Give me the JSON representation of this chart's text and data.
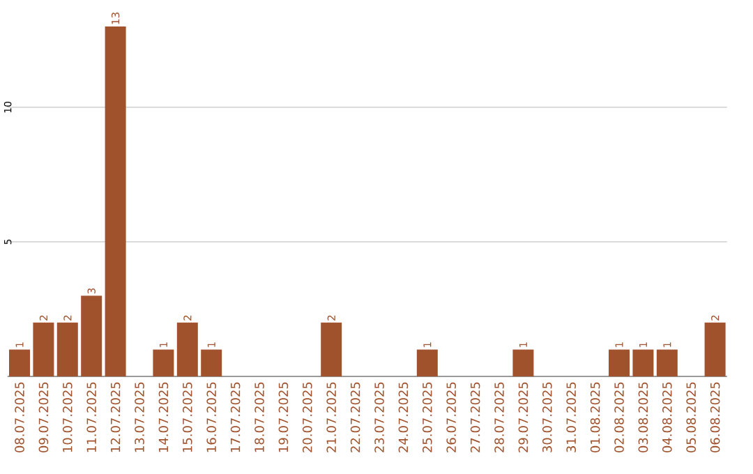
{
  "chart_data": {
    "type": "bar",
    "categories": [
      "08.07.2025",
      "09.07.2025",
      "10.07.2025",
      "11.07.2025",
      "12.07.2025",
      "13.07.2025",
      "14.07.2025",
      "15.07.2025",
      "16.07.2025",
      "17.07.2025",
      "18.07.2025",
      "19.07.2025",
      "20.07.2025",
      "21.07.2025",
      "22.07.2025",
      "23.07.2025",
      "24.07.2025",
      "25.07.2025",
      "26.07.2025",
      "27.07.2025",
      "28.07.2025",
      "29.07.2025",
      "30.07.2025",
      "31.07.2025",
      "01.08.2025",
      "02.08.2025",
      "03.08.2025",
      "04.08.2025",
      "05.08.2025",
      "06.08.2025"
    ],
    "values": [
      1,
      2,
      2,
      3,
      13,
      0,
      1,
      2,
      1,
      0,
      0,
      0,
      0,
      2,
      0,
      0,
      0,
      1,
      0,
      0,
      0,
      1,
      0,
      0,
      0,
      1,
      1,
      1,
      0,
      2
    ],
    "value_labels": [
      "1",
      "2",
      "2",
      "3",
      "13",
      null,
      "1",
      "2",
      "1",
      null,
      null,
      null,
      null,
      "2",
      null,
      null,
      null,
      "1",
      null,
      null,
      null,
      "1",
      null,
      null,
      null,
      "1",
      "1",
      "1",
      null,
      "2"
    ],
    "color": "#a0522d",
    "ylim": [
      0,
      13
    ],
    "yticks": [
      5,
      10
    ],
    "grid": "y"
  }
}
